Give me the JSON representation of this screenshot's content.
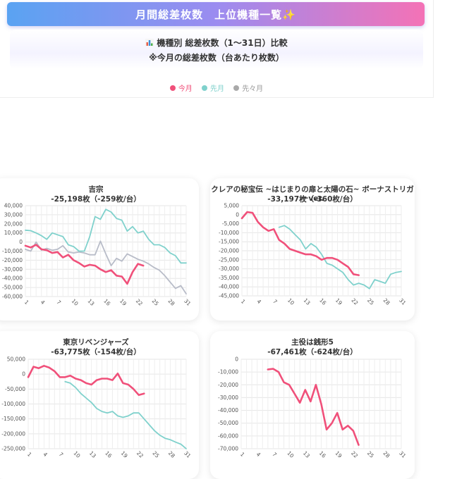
{
  "header": {
    "banner_title": "月間総差枚数　上位機種一覧✨",
    "subtitle_line1": "機種別 総差枚数（1〜31日）比較",
    "subtitle_line2": "※今月の総差枚数（台あたり枚数）"
  },
  "legend": [
    {
      "label": "今月",
      "color": "#f0507a"
    },
    {
      "label": "先月",
      "color": "#7fd1cc"
    },
    {
      "label": "先々月",
      "color": "#a9a9a9"
    }
  ],
  "colors": {
    "this_month": "#f0507a",
    "last_month": "#7fd1cc",
    "two_months_ago": "#b8bcc8"
  },
  "chart_data": [
    {
      "type": "line",
      "title": "吉宗",
      "subtitle": "-25,198枚（-259枚/台）",
      "ylim": [
        -60000,
        40000
      ],
      "yticks": [
        40000,
        30000,
        20000,
        10000,
        0,
        -10000,
        -20000,
        -30000,
        -40000,
        -50000,
        -60000
      ],
      "xticks": [
        1,
        4,
        7,
        10,
        13,
        16,
        19,
        22,
        25,
        28,
        31
      ],
      "grid": true,
      "series": [
        {
          "name": "今月",
          "x": [
            1,
            2,
            3,
            4,
            5,
            6,
            7,
            8,
            9,
            10,
            11,
            12,
            13,
            14,
            15,
            16,
            17,
            18,
            19,
            20,
            21,
            22,
            23
          ],
          "values": [
            -4000,
            -6000,
            -3000,
            -8000,
            -9000,
            -12000,
            -11000,
            -17000,
            -14000,
            -20000,
            -23000,
            -27000,
            -25000,
            -26000,
            -30000,
            -33000,
            -31000,
            -37000,
            -38000,
            -46000,
            -33000,
            -24000,
            -26000
          ]
        },
        {
          "name": "先月",
          "x": [
            1,
            2,
            3,
            4,
            5,
            6,
            7,
            8,
            9,
            10,
            11,
            12,
            13,
            14,
            15,
            16,
            17,
            18,
            19,
            20,
            21,
            22,
            23,
            24,
            25,
            26,
            27,
            28,
            29,
            30,
            31
          ],
          "values": [
            13000,
            12500,
            10000,
            7000,
            3000,
            10000,
            8000,
            6000,
            -3000,
            -5000,
            -10000,
            -10000,
            6000,
            28000,
            25000,
            36000,
            33000,
            26000,
            24000,
            12000,
            17000,
            10000,
            12000,
            3000,
            -3000,
            -3000,
            -6000,
            -12000,
            -15000,
            -23000,
            -23000
          ]
        },
        {
          "name": "先々月",
          "x": [
            1,
            2,
            3,
            4,
            5,
            6,
            7,
            8,
            9,
            10,
            11,
            12,
            13,
            14,
            15,
            16,
            17,
            18,
            19,
            20,
            21,
            22,
            23,
            24,
            25,
            26,
            27,
            28,
            29,
            30,
            31
          ],
          "values": [
            -8000,
            -10000,
            0,
            -9000,
            -7000,
            -9000,
            -8000,
            -4000,
            -11000,
            -12000,
            -11000,
            -12000,
            -14000,
            -14000,
            1000,
            -13000,
            -26000,
            -18000,
            -21000,
            -13000,
            -16000,
            -19000,
            -21000,
            -24000,
            -28000,
            -31000,
            -37000,
            -44000,
            -51000,
            -48000,
            -57000
          ]
        }
      ]
    },
    {
      "type": "line",
      "title": "クレアの秘宝伝 ~はじまりの扉と太陽の石~ ボーナストリガーver.",
      "subtitle": "-33,197枚（-360枚/台）",
      "ylim": [
        -45000,
        5000
      ],
      "yticks": [
        5000,
        0,
        -5000,
        -10000,
        -15000,
        -20000,
        -25000,
        -30000,
        -35000,
        -40000,
        -45000
      ],
      "xticks": [
        1,
        4,
        7,
        10,
        13,
        16,
        19,
        22,
        25,
        28,
        31
      ],
      "grid": true,
      "series": [
        {
          "name": "今月",
          "x": [
            1,
            2,
            3,
            4,
            5,
            6,
            7,
            8,
            9,
            10,
            11,
            12,
            13,
            14,
            15,
            16,
            17,
            18,
            19,
            20,
            21,
            22,
            23
          ],
          "values": [
            -2000,
            1500,
            1000,
            -4000,
            -7000,
            -9000,
            -8000,
            -14000,
            -16000,
            -19000,
            -20000,
            -21000,
            -22000,
            -22000,
            -23000,
            -25000,
            -24000,
            -24000,
            -25000,
            -27000,
            -29000,
            -33000,
            -33500
          ]
        },
        {
          "name": "先月",
          "x": [
            8,
            9,
            10,
            11,
            12,
            13,
            14,
            15,
            16,
            17,
            18,
            19,
            20,
            21,
            22,
            23,
            24,
            25,
            26,
            27,
            28,
            29,
            30,
            31
          ],
          "values": [
            -7000,
            -6000,
            -8000,
            -11000,
            -14000,
            -19000,
            -16000,
            -18000,
            -22000,
            -27000,
            -28000,
            -30000,
            -32000,
            -36000,
            -39000,
            -38000,
            -39000,
            -41000,
            -36000,
            -37000,
            -38000,
            -33000,
            -32000,
            -31500
          ]
        }
      ]
    },
    {
      "type": "line",
      "title": "東京リベンジャーズ",
      "subtitle": "-63,775枚（-154枚/台）",
      "ylim": [
        -250000,
        50000
      ],
      "yticks": [
        50000,
        0,
        -50000,
        -100000,
        -150000,
        -200000,
        -250000
      ],
      "xticks": [
        1,
        4,
        7,
        10,
        13,
        16,
        19,
        22,
        25,
        28,
        31
      ],
      "grid": true,
      "series": [
        {
          "name": "今月",
          "x": [
            1,
            2,
            3,
            4,
            5,
            6,
            7,
            8,
            9,
            10,
            11,
            12,
            13,
            14,
            15,
            16,
            17,
            18,
            19,
            20,
            21,
            22,
            23
          ],
          "values": [
            -10000,
            25000,
            20000,
            28000,
            22000,
            10000,
            -10000,
            -10000,
            -5000,
            -15000,
            -20000,
            -30000,
            -35000,
            -20000,
            -15000,
            -15000,
            -20000,
            2000,
            -30000,
            -35000,
            -50000,
            -70000,
            -65000
          ]
        },
        {
          "name": "先月",
          "x": [
            8,
            9,
            10,
            11,
            12,
            13,
            14,
            15,
            16,
            17,
            18,
            19,
            20,
            21,
            22,
            23,
            24,
            25,
            26,
            27,
            28,
            29,
            30,
            31
          ],
          "values": [
            -25000,
            -30000,
            -45000,
            -65000,
            -80000,
            -95000,
            -115000,
            -125000,
            -130000,
            -125000,
            -140000,
            -145000,
            -140000,
            -130000,
            -130000,
            -150000,
            -170000,
            -190000,
            -205000,
            -215000,
            -220000,
            -228000,
            -235000,
            -250000
          ]
        }
      ]
    },
    {
      "type": "line",
      "title": "主役は銭形5",
      "subtitle": "-67,461枚（-624枚/台）",
      "ylim": [
        -70000,
        0
      ],
      "yticks": [
        0,
        -10000,
        -20000,
        -30000,
        -40000,
        -50000,
        -60000,
        -70000
      ],
      "xticks": [
        1,
        4,
        7,
        10,
        13,
        16,
        19,
        22,
        25,
        28,
        31
      ],
      "grid": true,
      "series": [
        {
          "name": "今月",
          "x": [
            6,
            7,
            8,
            9,
            10,
            11,
            12,
            13,
            14,
            15,
            16,
            17,
            18,
            19,
            20,
            21,
            22,
            23
          ],
          "values": [
            -8000,
            -7500,
            -10000,
            -18000,
            -20000,
            -27000,
            -34000,
            -24000,
            -33000,
            -20000,
            -35000,
            -55000,
            -50000,
            -42000,
            -55000,
            -52000,
            -56000,
            -67000
          ]
        }
      ]
    }
  ]
}
